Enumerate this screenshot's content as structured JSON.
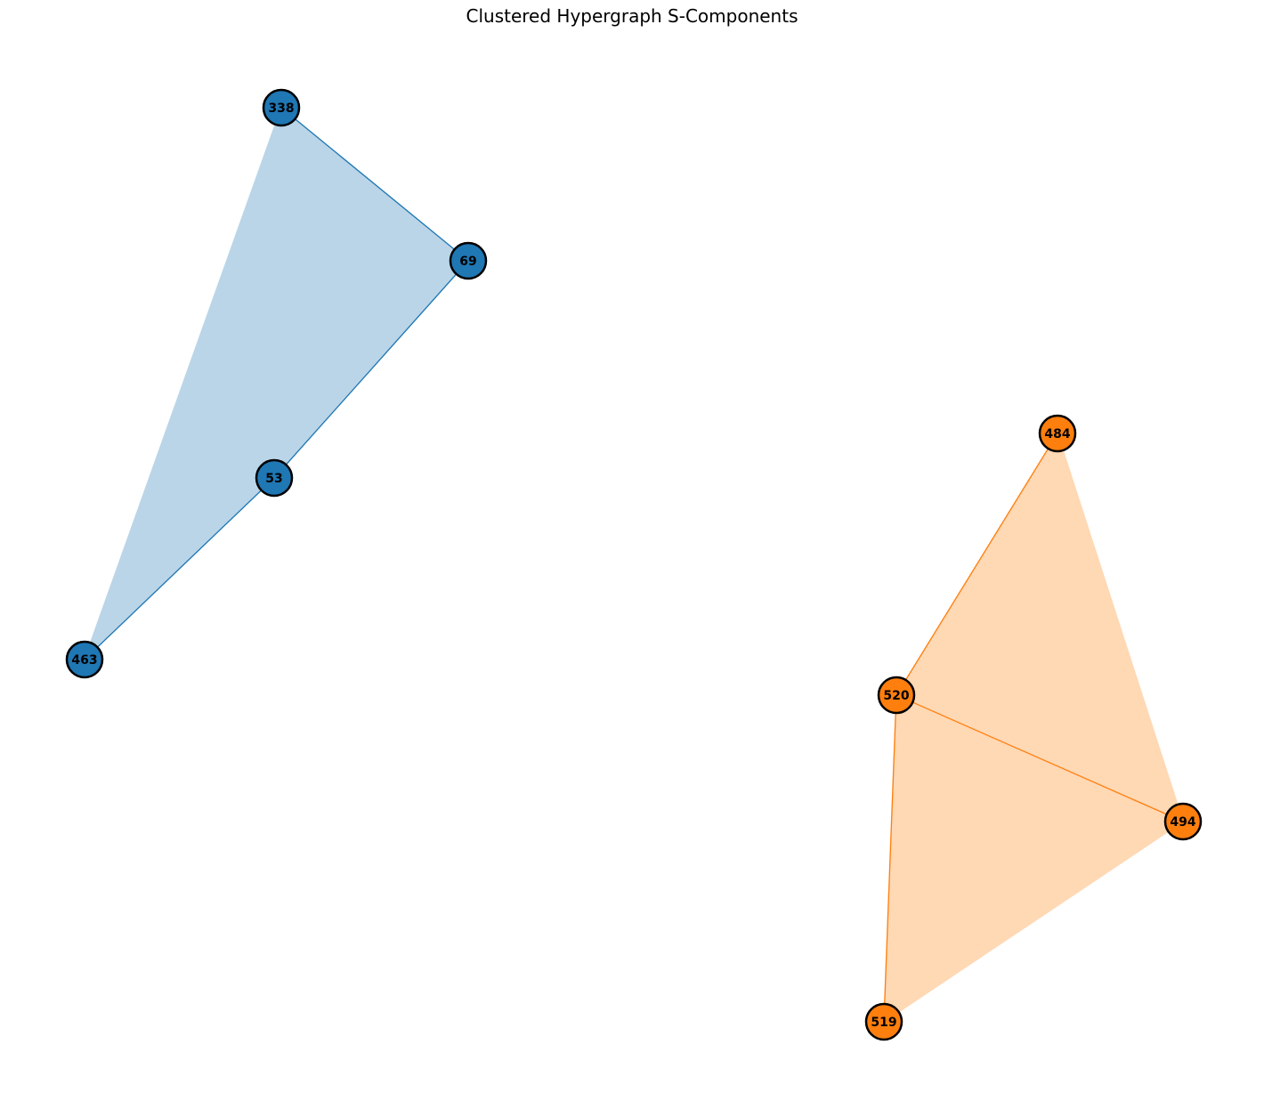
{
  "title": "Clustered Hypergraph S-Components",
  "colors": {
    "cluster_a": "#1f77b4",
    "cluster_a_fill": "#bad5e8",
    "cluster_b": "#ff7f0e",
    "cluster_b_fill": "#ffd8b4",
    "node_outline": "#000000"
  },
  "components": [
    {
      "id": "cluster-a",
      "color": "#1f77b4",
      "fill": "#bad5e8",
      "nodes": [
        "338",
        "69",
        "53",
        "463"
      ],
      "hull": [
        "338",
        "69",
        "53",
        "463"
      ],
      "edges": [
        [
          "338",
          "69"
        ],
        [
          "69",
          "53"
        ],
        [
          "53",
          "463"
        ]
      ]
    },
    {
      "id": "cluster-b",
      "color": "#ff7f0e",
      "fill": "#ffd8b4",
      "nodes": [
        "484",
        "520",
        "494",
        "519"
      ],
      "hull": [
        "484",
        "494",
        "519",
        "520"
      ],
      "edges": [
        [
          "484",
          "520"
        ],
        [
          "520",
          "494"
        ],
        [
          "520",
          "519"
        ]
      ]
    }
  ]
}
